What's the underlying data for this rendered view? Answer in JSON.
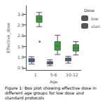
{
  "chart_data": {
    "type": "boxplot",
    "xlabel": "Age",
    "ylabel": "Effective_dose",
    "categories": [
      "1",
      "5-6",
      "10-12"
    ],
    "legend_title": "Dose",
    "legend": "right",
    "series": [
      {
        "name": "low",
        "color": "#3a5fa5",
        "values": [
          [
            0.68,
            0.78,
            0.85,
            0.93,
            1.02
          ],
          [
            0.6,
            0.68,
            0.73,
            0.79,
            0.87
          ],
          [
            0.72,
            0.82,
            0.88,
            0.96,
            1.04
          ]
        ],
        "fliers": [
          [],
          [],
          []
        ]
      },
      {
        "name": "stan",
        "color": "#2ca832",
        "values": [
          [
            2.42,
            2.62,
            2.78,
            2.93,
            3.08
          ],
          [
            1.12,
            1.32,
            1.52,
            1.72,
            2.02
          ],
          [
            1.1,
            1.28,
            1.42,
            1.58,
            1.72
          ]
        ],
        "fliers": [
          [
            1.72
          ],
          [],
          []
        ]
      }
    ],
    "ylim": [
      0.4,
      3.4
    ],
    "yticks": [
      0.5,
      {
        "value": 1,
        "label": "1.0"
      },
      1.5,
      {
        "value": 2,
        "label": "2.0"
      },
      2.5,
      {
        "value": 3,
        "label": "3.0"
      }
    ],
    "grid": false,
    "caption": "Figure 1: Box plot showing effective dose in different age groups for low dose and\nstandard protocols"
  }
}
